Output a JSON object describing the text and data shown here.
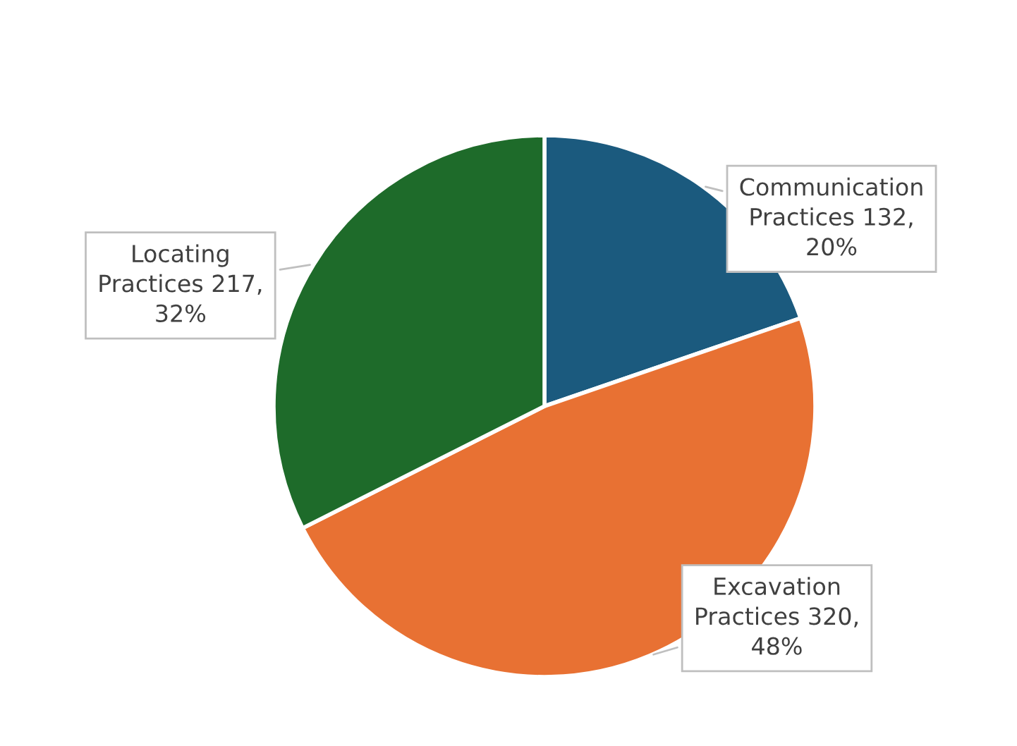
{
  "chart_data": {
    "type": "pie",
    "categories": [
      "Communication Practices",
      "Excavation Practices",
      "Locating Practices"
    ],
    "values": [
      132,
      320,
      217
    ],
    "value_labels": [
      "132, 20%",
      "320, 48%",
      "217, 32%"
    ],
    "colors": [
      "#1b5a7e",
      "#e87133",
      "#1e6b2a"
    ],
    "legend": false
  }
}
